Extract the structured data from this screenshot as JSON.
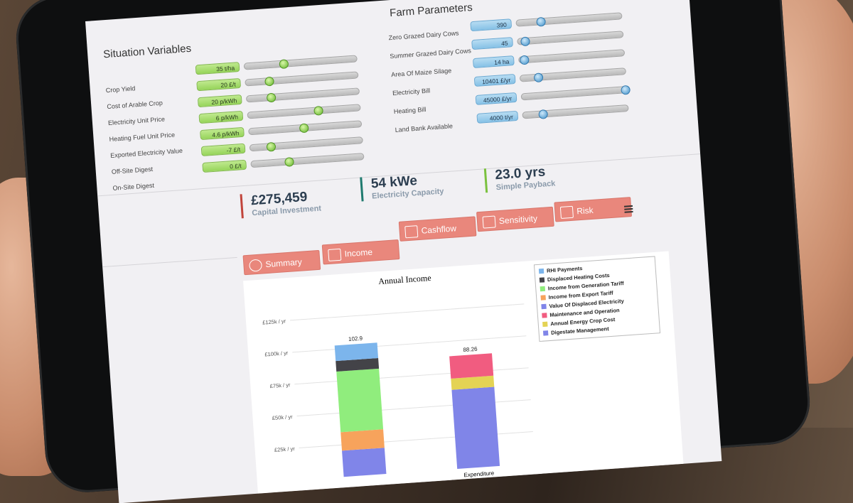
{
  "situation": {
    "title": "Situation Variables",
    "rows": [
      {
        "label": "Crop Yield",
        "value": "35 t/ha",
        "pos": 0.34
      },
      {
        "label": "Cost of Arable Crop",
        "value": "20 £/t",
        "pos": 0.2
      },
      {
        "label": "Electricity Unit Price",
        "value": "20 p/kWh",
        "pos": 0.21
      },
      {
        "label": "Heating Fuel Unit Price",
        "value": "6 p/kWh",
        "pos": 0.62
      },
      {
        "label": "Exported Electricity Value",
        "value": "4.6 p/kWh",
        "pos": 0.48
      },
      {
        "label": "Off-Site Digest",
        "value": "-7 £/t",
        "pos": 0.18
      },
      {
        "label": "On-Site Digest",
        "value": "0 £/t",
        "pos": 0.33
      }
    ]
  },
  "farm": {
    "title": "Farm Parameters",
    "rows": [
      {
        "label": "Zero Grazed Dairy Cows",
        "value": "390",
        "pos": 0.22
      },
      {
        "label": "Summer Grazed Dairy Cows",
        "value": "45",
        "pos": 0.06
      },
      {
        "label": "Area Of Maize Silage",
        "value": "14 ha",
        "pos": 0.04
      },
      {
        "label": "Electricity Bill",
        "value": "10401 £/yr",
        "pos": 0.16
      },
      {
        "label": "Heating Bill",
        "value": "45000 £/yr",
        "pos": 0.98
      },
      {
        "label": "Land Bank Available",
        "value": "4000 t/yr",
        "pos": 0.18
      }
    ]
  },
  "metrics": [
    {
      "value": "54 kWe",
      "label": "Electricity Capacity",
      "color": "#1f7a6e"
    },
    {
      "value": "23.0 yrs",
      "label": "Simple Payback",
      "color": "#7ac13e"
    },
    {
      "value": "£275,459",
      "label": "Capital Investment",
      "color": "#c1443b"
    }
  ],
  "tabs": [
    {
      "label": "Cashflow"
    },
    {
      "label": "Sensitivity"
    },
    {
      "label": "Risk"
    },
    {
      "label": "Summary"
    },
    {
      "label": "Income"
    }
  ],
  "menu_icon": "hamburger-menu-icon",
  "chart_data": {
    "type": "bar",
    "title": "Annual Income",
    "stacked": true,
    "categories": [
      "",
      "Expenditure"
    ],
    "ytick_labels": [
      "£25k / yr",
      "£50k / yr",
      "£75k / yr",
      "£100k / yr",
      "£125k / yr"
    ],
    "ylim": [
      0,
      125
    ],
    "totals": [
      "102.9",
      "88.26"
    ],
    "series": [
      {
        "name": "RHI Payments",
        "color": "#7cb5ec",
        "values": [
          12.1,
          0
        ]
      },
      {
        "name": "Displaced Heating Costs",
        "color": "#434348",
        "values": [
          8.3,
          0
        ]
      },
      {
        "name": "Income from Generation Tariff",
        "color": "#90ed7d",
        "values": [
          47.5,
          0
        ]
      },
      {
        "name": "Income from Export Tariff",
        "color": "#f7a35c",
        "values": [
          14.5,
          0
        ]
      },
      {
        "name": "Value Of Displaced Electricity",
        "color": "#8085e9",
        "values": [
          20.5,
          0
        ]
      },
      {
        "name": "Maintenance and Operation",
        "color": "#f15c80",
        "values": [
          0,
          17.5
        ]
      },
      {
        "name": "Annual Energy Crop Cost",
        "color": "#e4d354",
        "values": [
          0,
          8.8
        ]
      },
      {
        "name": "Digestate Management",
        "color": "#8085e8",
        "values": [
          0,
          62
        ]
      }
    ]
  }
}
